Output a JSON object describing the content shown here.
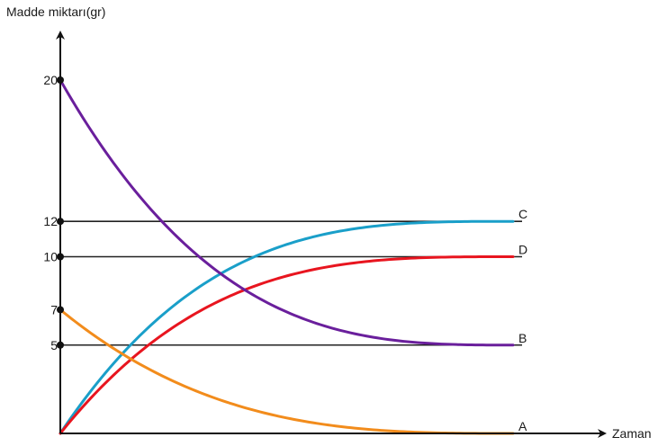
{
  "chart_data": {
    "type": "line",
    "ylabel": "Madde miktarı(gr)",
    "xlabel": "Zaman",
    "ylim": [
      0,
      20
    ],
    "y_ticks": [
      {
        "value": 20,
        "label": "20"
      },
      {
        "value": 12,
        "label": "12"
      },
      {
        "value": 10,
        "label": "10"
      },
      {
        "value": 7,
        "label": "7"
      },
      {
        "value": 5,
        "label": "5"
      }
    ],
    "reference_lines": [
      12,
      10,
      5
    ],
    "grid": false,
    "series": [
      {
        "name": "C",
        "color": "#1a9fc9",
        "start": 0,
        "end": 12,
        "shape": "rise"
      },
      {
        "name": "D",
        "color": "#e8151f",
        "start": 0,
        "end": 10,
        "shape": "rise"
      },
      {
        "name": "B",
        "color": "#6a1f9c",
        "start": 20,
        "end": 5,
        "shape": "fall"
      },
      {
        "name": "A",
        "color": "#f28c1c",
        "start": 7,
        "end": 0,
        "shape": "fall"
      }
    ]
  }
}
